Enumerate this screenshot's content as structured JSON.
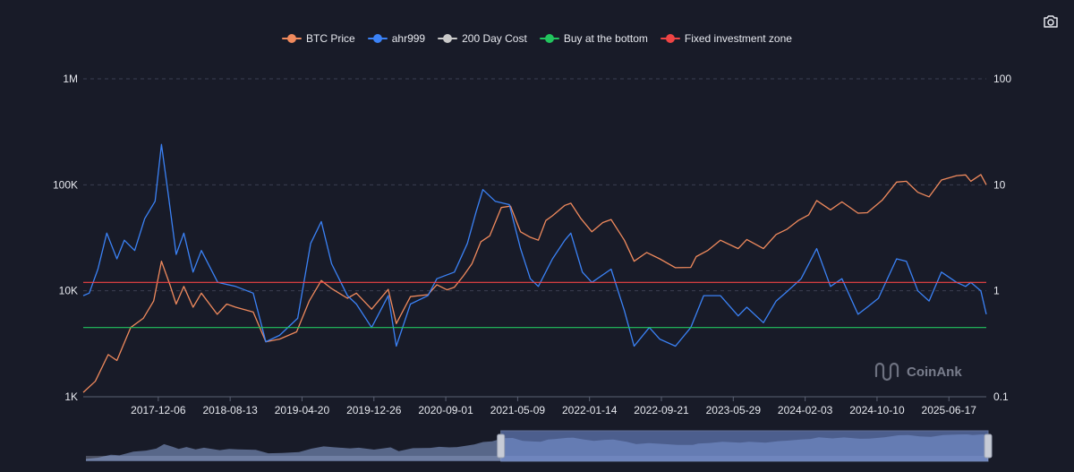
{
  "toolbar": {
    "icon": "camera-icon",
    "tooltip": ""
  },
  "watermark": {
    "text": "CoinAnk"
  },
  "colors": {
    "background": "#181b28",
    "btc": "#f08a5d",
    "ahr999": "#3b82f6",
    "cost200": "#c9c9c9",
    "bottom": "#22c55e",
    "fixed": "#ef4444",
    "grid": "#3a3f52",
    "text": "#e6e8ee"
  },
  "chart_data": {
    "type": "line",
    "legend_position": "top-center",
    "grid": true,
    "log_scale": true,
    "left_axis": {
      "scale": "log",
      "ticks": [
        "1K",
        "10K",
        "100K",
        "1M"
      ],
      "tick_values": [
        1000,
        10000,
        100000,
        1000000
      ],
      "range": [
        1000,
        1000000
      ]
    },
    "right_axis": {
      "scale": "log",
      "ticks": [
        "0.1",
        "1",
        "10",
        "100"
      ],
      "tick_values": [
        0.1,
        1,
        10,
        100
      ],
      "range": [
        0.1,
        100
      ]
    },
    "x_axis": {
      "type": "date",
      "range": [
        "2017-03-20",
        "2025-10-25"
      ],
      "ticks": [
        "2017-12-06",
        "2018-08-13",
        "2019-04-20",
        "2019-12-26",
        "2020-09-01",
        "2021-05-09",
        "2022-01-14",
        "2022-09-21",
        "2023-05-29",
        "2024-02-03",
        "2024-10-10",
        "2025-06-17"
      ]
    },
    "series": [
      {
        "name": "BTC Price",
        "axis": "left",
        "x": [
          "2017-03-20",
          "2017-05-01",
          "2017-06-15",
          "2017-07-15",
          "2017-09-01",
          "2017-10-15",
          "2017-11-20",
          "2017-12-17",
          "2018-01-15",
          "2018-02-06",
          "2018-03-05",
          "2018-04-06",
          "2018-05-05",
          "2018-06-29",
          "2018-08-01",
          "2018-09-01",
          "2018-11-01",
          "2018-12-15",
          "2019-02-01",
          "2019-04-01",
          "2019-05-15",
          "2019-06-26",
          "2019-08-01",
          "2019-09-25",
          "2019-10-26",
          "2019-12-18",
          "2020-02-14",
          "2020-03-13",
          "2020-05-01",
          "2020-07-01",
          "2020-08-01",
          "2020-09-05",
          "2020-10-01",
          "2020-11-01",
          "2020-12-01",
          "2021-01-01",
          "2021-02-01",
          "2021-03-13",
          "2021-04-14",
          "2021-05-19",
          "2021-06-22",
          "2021-07-20",
          "2021-08-15",
          "2021-09-07",
          "2021-10-20",
          "2021-11-10",
          "2021-12-15",
          "2022-01-22",
          "2022-03-01",
          "2022-03-30",
          "2022-05-15",
          "2022-06-18",
          "2022-08-01",
          "2022-09-15",
          "2022-11-09",
          "2023-01-01",
          "2023-01-20",
          "2023-03-01",
          "2023-04-14",
          "2023-06-15",
          "2023-07-15",
          "2023-09-11",
          "2023-10-25",
          "2023-12-01",
          "2024-01-10",
          "2024-02-15",
          "2024-03-14",
          "2024-05-01",
          "2024-06-10",
          "2024-08-05",
          "2024-09-06",
          "2024-10-29",
          "2024-12-17",
          "2025-01-20",
          "2025-03-01",
          "2025-04-09",
          "2025-05-22",
          "2025-07-14",
          "2025-08-14",
          "2025-09-01",
          "2025-10-06",
          "2025-10-25"
        ],
        "values": [
          1100,
          1400,
          2500,
          2200,
          4500,
          5500,
          8000,
          19000,
          11500,
          7500,
          11000,
          7000,
          9500,
          6000,
          7500,
          7000,
          6300,
          3300,
          3500,
          4100,
          8000,
          12500,
          10500,
          8500,
          9500,
          6700,
          10300,
          4900,
          8800,
          9200,
          11400,
          10200,
          10800,
          13800,
          18000,
          29000,
          33000,
          61000,
          63000,
          36000,
          32000,
          30000,
          46000,
          51000,
          64000,
          67000,
          48000,
          36000,
          44000,
          47000,
          30000,
          19000,
          23000,
          20000,
          16500,
          16600,
          21000,
          24000,
          30000,
          25000,
          30500,
          25000,
          34000,
          38000,
          46000,
          52000,
          71000,
          58000,
          69000,
          54000,
          54500,
          72000,
          106000,
          108000,
          85000,
          77000,
          111000,
          122000,
          124000,
          108000,
          125000,
          100000
        ]
      },
      {
        "name": "ahr999",
        "axis": "right",
        "x": [
          "2017-03-20",
          "2017-04-10",
          "2017-05-10",
          "2017-06-10",
          "2017-07-15",
          "2017-08-10",
          "2017-09-15",
          "2017-10-20",
          "2017-11-25",
          "2017-12-17",
          "2018-01-10",
          "2018-02-06",
          "2018-03-05",
          "2018-04-06",
          "2018-05-05",
          "2018-07-01",
          "2018-09-01",
          "2018-11-01",
          "2018-12-15",
          "2019-02-01",
          "2019-04-05",
          "2019-05-20",
          "2019-06-26",
          "2019-08-01",
          "2019-09-25",
          "2019-10-26",
          "2019-12-18",
          "2020-02-14",
          "2020-03-13",
          "2020-05-01",
          "2020-07-01",
          "2020-08-01",
          "2020-10-01",
          "2020-11-15",
          "2020-12-15",
          "2021-01-08",
          "2021-02-20",
          "2021-04-10",
          "2021-05-19",
          "2021-06-22",
          "2021-07-20",
          "2021-09-07",
          "2021-10-20",
          "2021-11-10",
          "2021-12-20",
          "2022-01-22",
          "2022-03-30",
          "2022-05-15",
          "2022-06-18",
          "2022-08-10",
          "2022-09-15",
          "2022-11-09",
          "2023-01-01",
          "2023-02-15",
          "2023-04-14",
          "2023-06-15",
          "2023-07-15",
          "2023-09-11",
          "2023-10-25",
          "2023-12-05",
          "2024-01-20",
          "2024-03-14",
          "2024-05-01",
          "2024-06-10",
          "2024-08-05",
          "2024-09-06",
          "2024-10-15",
          "2024-12-17",
          "2025-01-20",
          "2025-03-01",
          "2025-04-09",
          "2025-05-22",
          "2025-07-14",
          "2025-08-14",
          "2025-09-01",
          "2025-10-06",
          "2025-10-25"
        ],
        "values": [
          0.9,
          0.95,
          1.6,
          3.5,
          2.0,
          3.0,
          2.4,
          4.8,
          7.0,
          24.0,
          8.0,
          2.2,
          3.5,
          1.5,
          2.4,
          1.2,
          1.1,
          0.95,
          0.33,
          0.38,
          0.55,
          2.8,
          4.5,
          1.8,
          0.9,
          0.75,
          0.45,
          0.9,
          0.3,
          0.75,
          0.9,
          1.3,
          1.5,
          2.8,
          5.5,
          9.0,
          7.0,
          6.5,
          2.5,
          1.3,
          1.1,
          2.0,
          3.0,
          3.5,
          1.5,
          1.2,
          1.6,
          0.65,
          0.3,
          0.45,
          0.35,
          0.3,
          0.45,
          0.9,
          0.9,
          0.58,
          0.7,
          0.5,
          0.8,
          1.0,
          1.3,
          2.5,
          1.1,
          1.3,
          0.6,
          0.7,
          0.85,
          2.0,
          1.9,
          1.0,
          0.8,
          1.5,
          1.2,
          1.1,
          1.2,
          1.0,
          0.6
        ]
      },
      {
        "name": "200 Day Cost",
        "axis": "right",
        "x": [],
        "values": []
      },
      {
        "name": "Buy at the bottom",
        "axis": "right",
        "x": [
          "2017-03-20",
          "2025-10-25"
        ],
        "values": [
          0.45,
          0.45
        ]
      },
      {
        "name": "Fixed investment zone",
        "axis": "right",
        "x": [
          "2017-03-20",
          "2025-10-25"
        ],
        "values": [
          1.2,
          1.2
        ]
      }
    ],
    "data_zoom": {
      "start_fraction": 0.46,
      "end_fraction": 1.0
    }
  }
}
